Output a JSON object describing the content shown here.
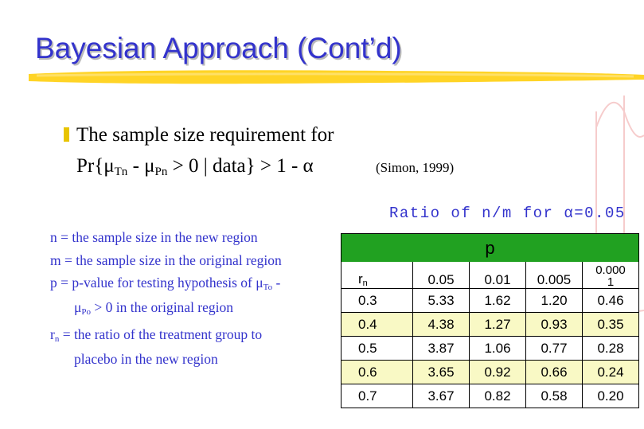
{
  "slide": {
    "title": "Bayesian Approach (Cont’d)",
    "bullet_line1": "The sample size requirement for",
    "formula": {
      "prefix": "Pr{μ",
      "sub1": "Tn",
      "mid": " - μ",
      "sub2": "Pn",
      "suffix": " > 0 | data} > 1 - α"
    },
    "citation": "(Simon, 1999)",
    "table_caption": "Ratio of n/m for α=0.05"
  },
  "definitions": {
    "n": "n = the sample size in the new region",
    "m": "m = the sample size in the original region",
    "p_a": "p = p-value for testing hypothesis of  μ",
    "p_sub_a": "To",
    "p_b": " -",
    "p_c": "μ",
    "p_sub_c": "Po",
    "p_d": " > 0 in the original region",
    "rn_a": "r",
    "rn_sub": "n",
    "rn_b": " = the ratio of the treatment group to",
    "rn_c": "placebo in the new region"
  },
  "table": {
    "p_header": "p",
    "rn_label": "r",
    "rn_label_sub": "n",
    "columns": [
      "0.05",
      "0.01",
      "0.005"
    ],
    "col4_line1": "0.000",
    "col4_line2": "1",
    "rows": [
      {
        "rn": "0.3",
        "values": [
          "5.33",
          "1.62",
          "1.20",
          "0.46"
        ]
      },
      {
        "rn": "0.4",
        "values": [
          "4.38",
          "1.27",
          "0.93",
          "0.35"
        ]
      },
      {
        "rn": "0.5",
        "values": [
          "3.87",
          "1.06",
          "0.77",
          "0.28"
        ]
      },
      {
        "rn": "0.6",
        "values": [
          "3.65",
          "0.92",
          "0.66",
          "0.24"
        ]
      },
      {
        "rn": "0.7",
        "values": [
          "3.67",
          "0.82",
          "0.58",
          "0.20"
        ]
      }
    ]
  },
  "colors": {
    "title": "#3333cc",
    "accent_bar": "#ffcc00",
    "table_header_green": "#21a121",
    "row_highlight": "#f9f9c5"
  }
}
